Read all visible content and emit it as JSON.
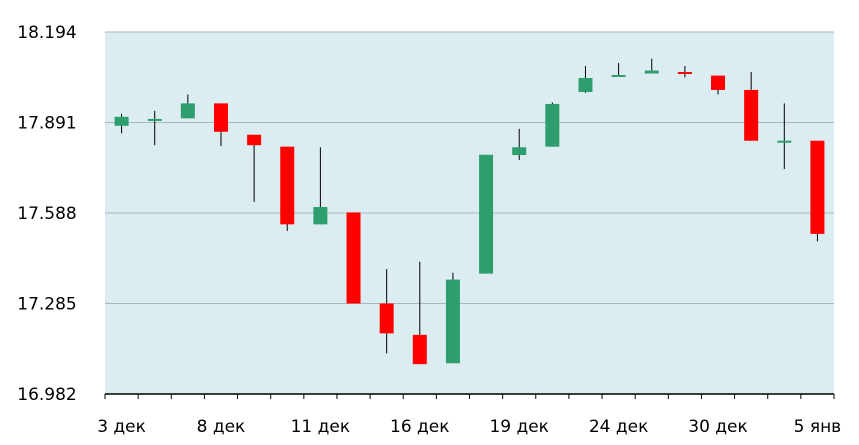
{
  "chart_data": {
    "type": "candlestick",
    "y_ticks": [
      "18.194",
      "17.891",
      "17.588",
      "17.285",
      "16.982"
    ],
    "ylim": [
      16.982,
      18.194
    ],
    "x_tick_labels": [
      {
        "label": "3 дек",
        "index": 0
      },
      {
        "label": "8 дек",
        "index": 3
      },
      {
        "label": "11 дек",
        "index": 6
      },
      {
        "label": "16 дек",
        "index": 9
      },
      {
        "label": "19 дек",
        "index": 12
      },
      {
        "label": "24 дек",
        "index": 15
      },
      {
        "label": "30 дек",
        "index": 18
      },
      {
        "label": "5 янв",
        "index": 21
      }
    ],
    "candles": [
      {
        "open": 17.88,
        "close": 17.91,
        "high": 17.92,
        "low": 17.855
      },
      {
        "open": 17.898,
        "close": 17.903,
        "high": 17.93,
        "low": 17.815
      },
      {
        "open": 17.905,
        "close": 17.955,
        "high": 17.985,
        "low": 17.905
      },
      {
        "open": 17.955,
        "close": 17.86,
        "high": 17.955,
        "low": 17.812
      },
      {
        "open": 17.85,
        "close": 17.815,
        "high": 17.85,
        "low": 17.625
      },
      {
        "open": 17.81,
        "close": 17.55,
        "high": 17.81,
        "low": 17.528
      },
      {
        "open": 17.55,
        "close": 17.608,
        "high": 17.808,
        "low": 17.55
      },
      {
        "open": 17.59,
        "close": 17.285,
        "high": 17.59,
        "low": 17.285
      },
      {
        "open": 17.285,
        "close": 17.185,
        "high": 17.4,
        "low": 17.118
      },
      {
        "open": 17.18,
        "close": 17.082,
        "high": 17.425,
        "low": 17.082
      },
      {
        "open": 17.085,
        "close": 17.365,
        "high": 17.388,
        "low": 17.085
      },
      {
        "open": 17.385,
        "close": 17.783,
        "high": 17.783,
        "low": 17.385
      },
      {
        "open": 17.782,
        "close": 17.808,
        "high": 17.87,
        "low": 17.765
      },
      {
        "open": 17.81,
        "close": 17.953,
        "high": 17.958,
        "low": 17.81
      },
      {
        "open": 17.993,
        "close": 18.04,
        "high": 18.08,
        "low": 17.99
      },
      {
        "open": 18.05,
        "close": 18.05,
        "high": 18.09,
        "low": 18.045
      },
      {
        "open": 18.055,
        "close": 18.065,
        "high": 18.105,
        "low": 18.055
      },
      {
        "open": 18.06,
        "close": 18.058,
        "high": 18.08,
        "low": 18.042
      },
      {
        "open": 18.048,
        "close": 18.0,
        "high": 18.048,
        "low": 17.985
      },
      {
        "open": 18.0,
        "close": 17.83,
        "high": 18.06,
        "low": 17.83
      },
      {
        "open": 17.825,
        "close": 17.83,
        "high": 17.955,
        "low": 17.735
      },
      {
        "open": 17.83,
        "close": 17.518,
        "high": 17.83,
        "low": 17.493
      }
    ],
    "colors": {
      "plot_background": "#DCEDF2",
      "grid": "#A8B8BD",
      "up": "#2E9E6E",
      "down": "#FF0000",
      "wick": "#000000",
      "axis": "#000000"
    },
    "grid": true
  }
}
